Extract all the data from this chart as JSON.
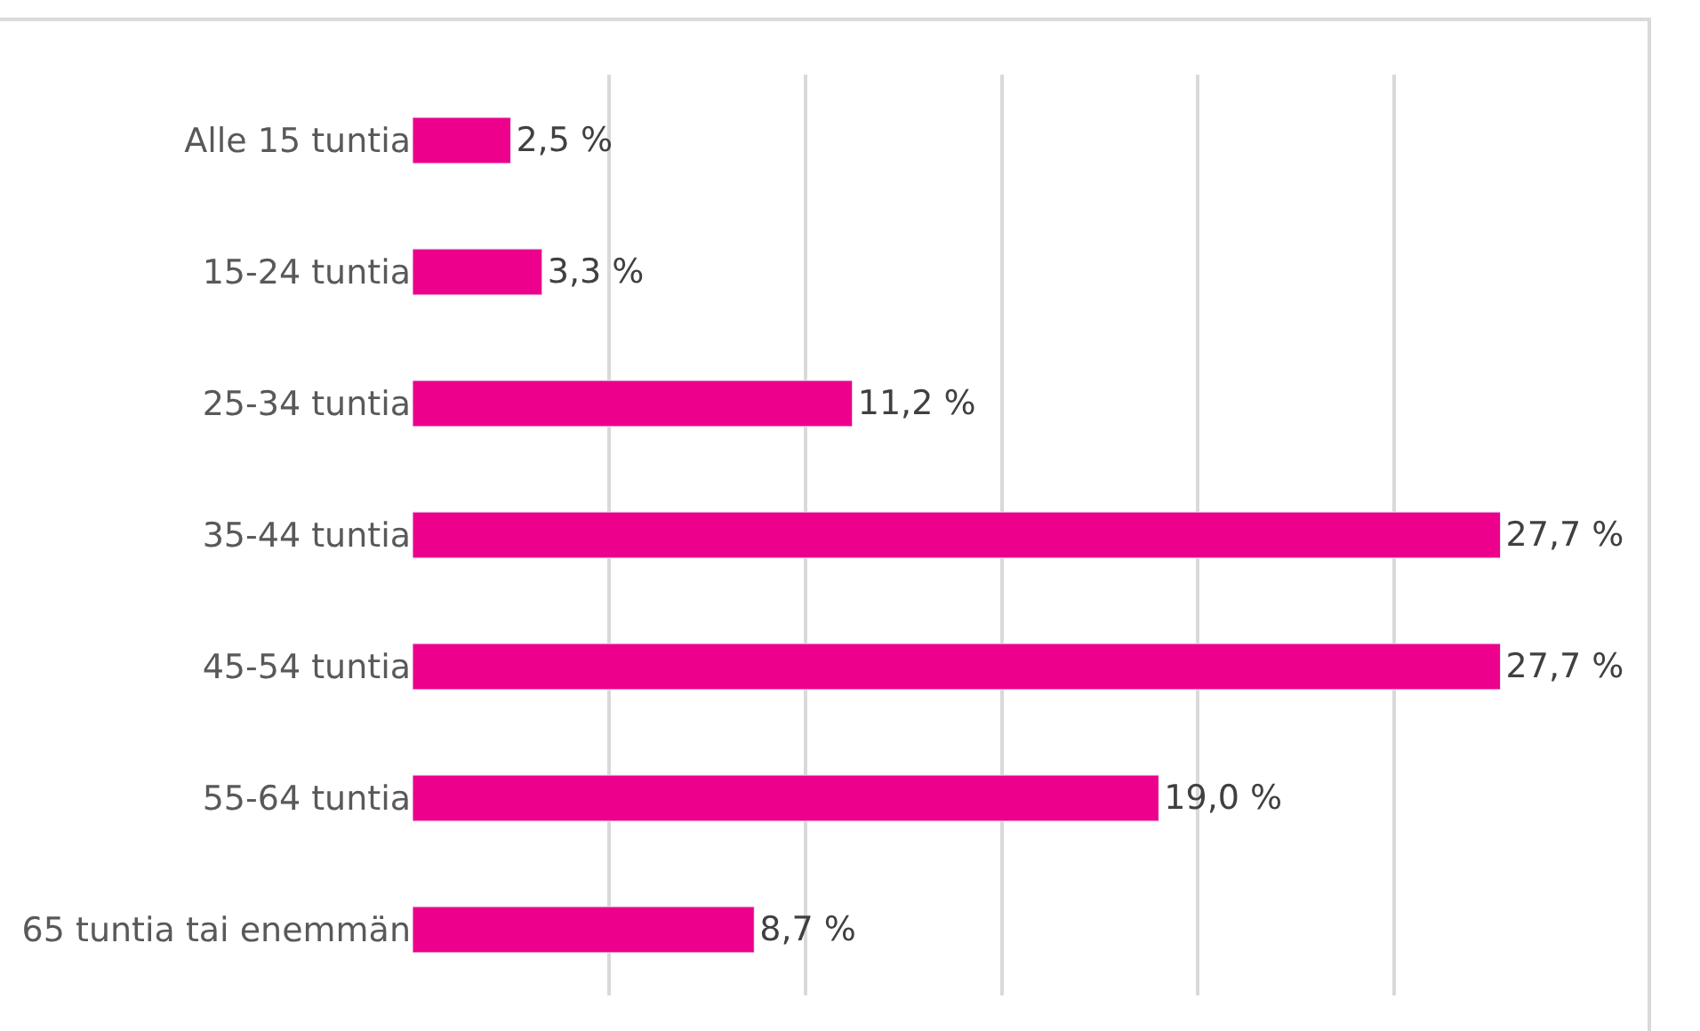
{
  "chart_data": {
    "type": "bar",
    "orientation": "horizontal",
    "categories": [
      "Alle 15 tuntia",
      "15-24 tuntia",
      "25-34 tuntia",
      "35-44 tuntia",
      "45-54 tuntia",
      "55-64 tuntia",
      "65 tuntia tai enemmän"
    ],
    "values": [
      2.5,
      3.3,
      11.2,
      27.7,
      27.7,
      19.0,
      8.7
    ],
    "value_labels": [
      "2,5 %",
      "3,3 %",
      "11,2 %",
      "27,7 %",
      "27,7 %",
      "19,0 %",
      "8,7 %"
    ],
    "color": "#ec008c",
    "grid": "x",
    "tick_labels": "y"
  }
}
